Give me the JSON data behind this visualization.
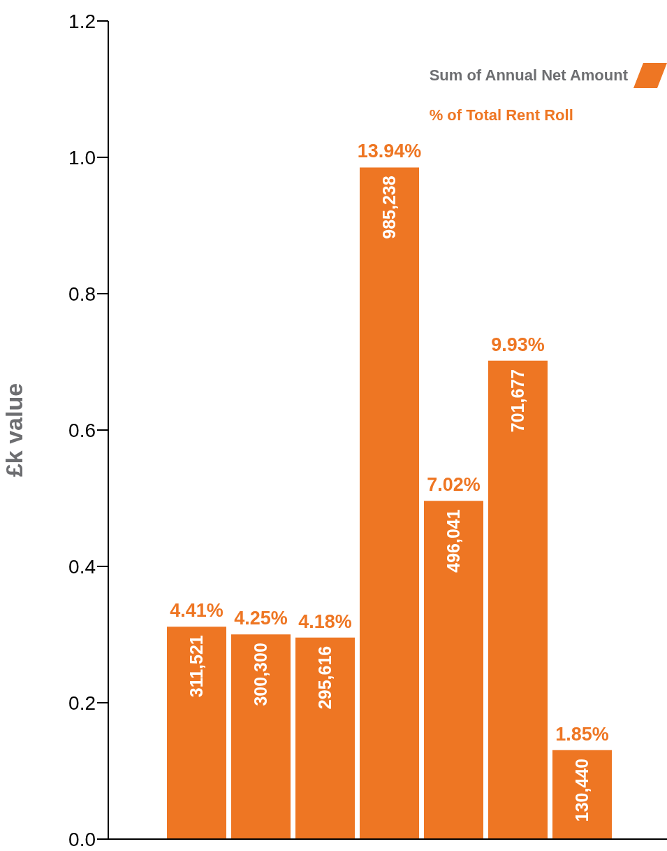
{
  "chart_data": {
    "type": "bar",
    "ylabel": "£k value",
    "categories": [
      null,
      null,
      null,
      null,
      null,
      null,
      null
    ],
    "series": [
      {
        "name": "Sum of Annual Net Amount",
        "color": "#ee7623",
        "values": [
          0.311521,
          0.3003,
          0.295616,
          0.985238,
          0.496041,
          0.701677,
          0.13044
        ]
      }
    ],
    "annotations": [
      "% of Total Rent Roll",
      {
        "text": "311,521",
        "y": 0.311521
      },
      {
        "text": "300,300",
        "y": 0.3003
      },
      {
        "text": "295,616",
        "y": 0.295616
      },
      {
        "text": "985,238",
        "y": 0.985238
      },
      {
        "text": "496,041",
        "y": 0.496041
      },
      {
        "text": "701,677",
        "y": 0.701677
      },
      {
        "text": "130,440",
        "y": 0.13044
      },
      {
        "text": "4.41%",
        "y": 0.311521
      },
      {
        "text": "4.25%",
        "y": 0.3003
      },
      {
        "text": "4.18%",
        "y": 0.295616
      },
      {
        "text": "13.94%",
        "y": 0.985238
      },
      {
        "text": "7.02%",
        "y": 0.496041
      },
      {
        "text": "9.93%",
        "y": 0.701677
      },
      {
        "text": "1.85%",
        "y": 0.13044
      }
    ],
    "ylim": [
      0,
      1.2
    ],
    "yticks": [
      {
        "value": 0,
        "label": "0.0"
      },
      0.2,
      0.4,
      0.6,
      0.8,
      {
        "value": 1,
        "label": "1.0"
      },
      1.2
    ],
    "grid": false,
    "legend": "top right"
  }
}
